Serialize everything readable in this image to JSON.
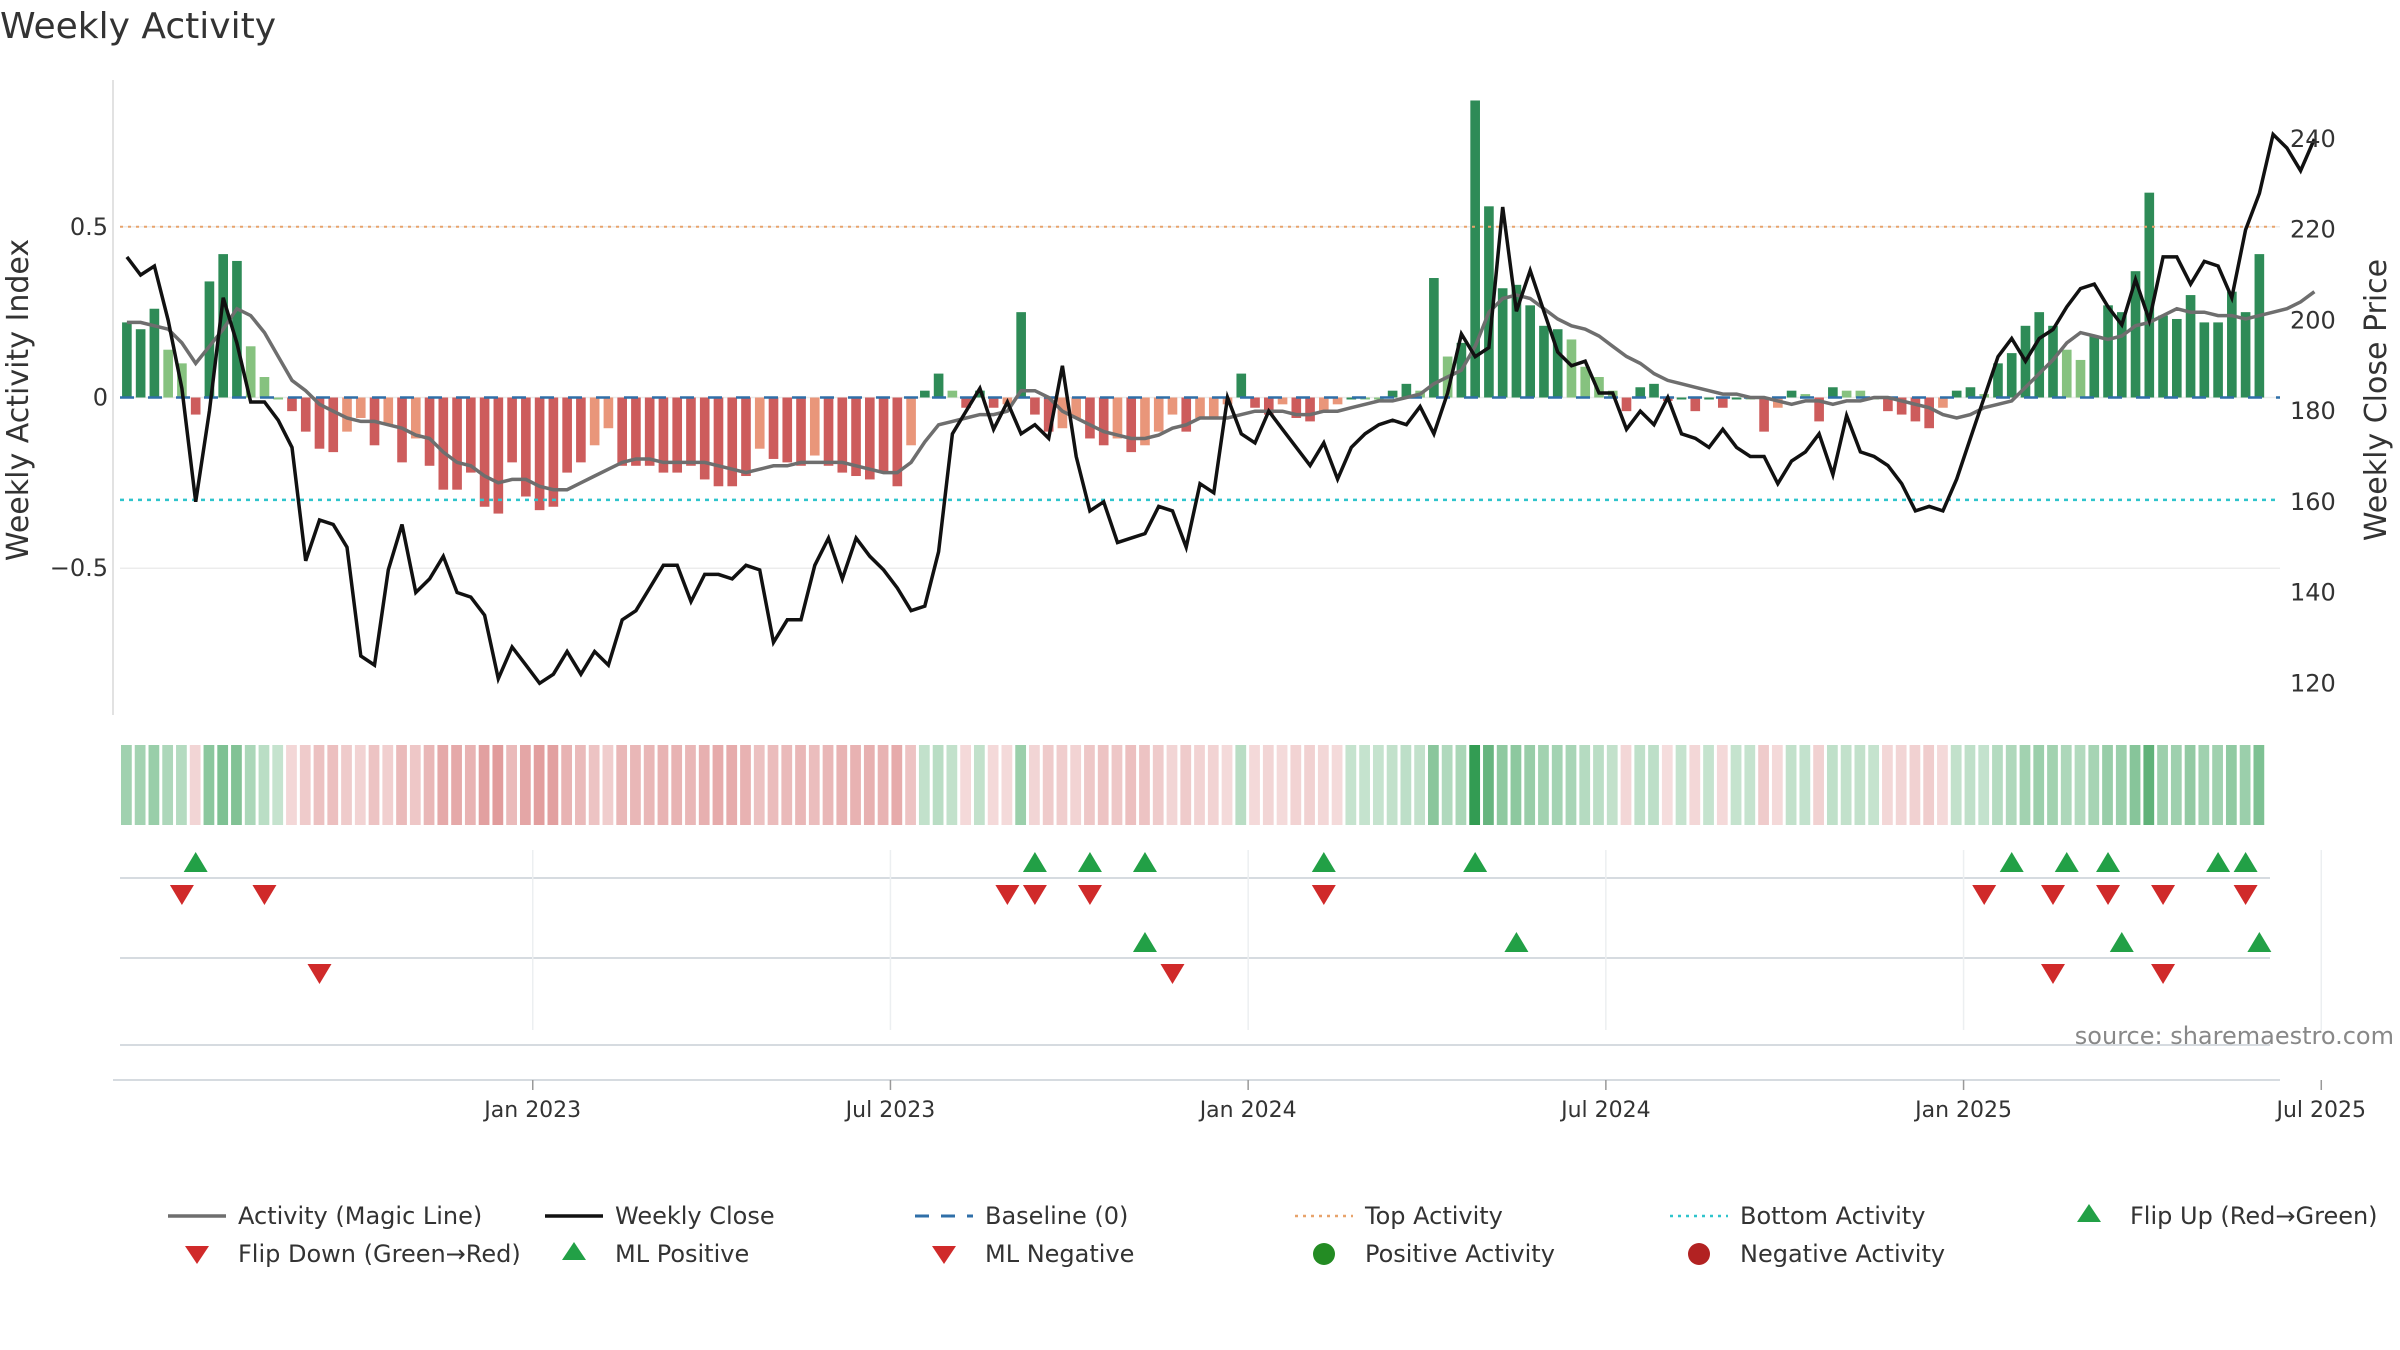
{
  "chart_data": {
    "type": "bar",
    "title": "Weekly Activity",
    "ylabel_left": "Weekly Activity Index",
    "ylabel_right": "Weekly Close Price",
    "source": "source: sharemaestro.com",
    "ylim_left": [
      -0.93,
      0.93
    ],
    "ylim_right": [
      113,
      253
    ],
    "yticks_left": [
      {
        "v": 0.5,
        "label": "0.5"
      },
      {
        "v": 0,
        "label": "0"
      },
      {
        "v": -0.5,
        "label": "−0.5"
      }
    ],
    "yticks_right": [
      120,
      140,
      160,
      180,
      200,
      220,
      240
    ],
    "top_activity": 0.5,
    "bottom_activity": -0.3,
    "x_ticks": [
      {
        "week": 30,
        "label": "Jan 2023"
      },
      {
        "week": 56,
        "label": "Jul 2023"
      },
      {
        "week": 82,
        "label": "Jan 2024"
      },
      {
        "week": 108,
        "label": "Jul 2024"
      },
      {
        "week": 134,
        "label": "Jan 2025"
      },
      {
        "week": 160,
        "label": "Jul 2025"
      }
    ],
    "n_weeks": 157,
    "activity": [
      0.22,
      0.2,
      0.26,
      0.14,
      0.1,
      -0.05,
      0.34,
      0.42,
      0.4,
      0.15,
      0.06,
      0.0,
      -0.04,
      -0.1,
      -0.15,
      -0.16,
      -0.1,
      -0.06,
      -0.14,
      -0.08,
      -0.19,
      -0.12,
      -0.2,
      -0.27,
      -0.27,
      -0.22,
      -0.32,
      -0.34,
      -0.19,
      -0.29,
      -0.33,
      -0.32,
      -0.22,
      -0.19,
      -0.14,
      -0.09,
      -0.2,
      -0.2,
      -0.2,
      -0.22,
      -0.22,
      -0.2,
      -0.24,
      -0.26,
      -0.26,
      -0.23,
      -0.15,
      -0.18,
      -0.19,
      -0.2,
      -0.17,
      -0.2,
      -0.22,
      -0.23,
      -0.24,
      -0.22,
      -0.26,
      -0.14,
      0.02,
      0.07,
      0.02,
      -0.03,
      0.02,
      -0.03,
      -0.02,
      0.25,
      -0.05,
      -0.1,
      -0.09,
      -0.06,
      -0.12,
      -0.14,
      -0.12,
      -0.16,
      -0.14,
      -0.1,
      -0.05,
      -0.1,
      -0.06,
      -0.06,
      -0.02,
      0.07,
      -0.03,
      -0.05,
      -0.02,
      -0.06,
      -0.07,
      -0.04,
      -0.02,
      0.0,
      0.0,
      0.0,
      0.02,
      0.04,
      0.02,
      0.35,
      0.12,
      0.16,
      0.87,
      0.56,
      0.32,
      0.33,
      0.27,
      0.21,
      0.2,
      0.17,
      0.09,
      0.06,
      0.02,
      -0.04,
      0.03,
      0.04,
      -0.01,
      0.0,
      -0.04,
      0.0,
      -0.03,
      0.0,
      0.0,
      -0.1,
      -0.03,
      0.02,
      0.01,
      -0.07,
      0.03,
      0.02,
      0.02,
      0.0,
      -0.04,
      -0.05,
      -0.07,
      -0.09,
      -0.03,
      0.02,
      0.03,
      0.01,
      0.1,
      0.13,
      0.21,
      0.25,
      0.21,
      0.14,
      0.11,
      0.18,
      0.27,
      0.25,
      0.37,
      0.6,
      0.24,
      0.23,
      0.3,
      0.22,
      0.22,
      0.31,
      0.25,
      0.42
    ],
    "magic_line": [
      0.22,
      0.22,
      0.21,
      0.2,
      0.16,
      0.1,
      0.15,
      0.2,
      0.26,
      0.24,
      0.19,
      0.12,
      0.05,
      0.02,
      -0.02,
      -0.04,
      -0.06,
      -0.07,
      -0.07,
      -0.08,
      -0.09,
      -0.11,
      -0.12,
      -0.16,
      -0.19,
      -0.2,
      -0.23,
      -0.25,
      -0.24,
      -0.24,
      -0.26,
      -0.27,
      -0.27,
      -0.25,
      -0.23,
      -0.21,
      -0.19,
      -0.18,
      -0.18,
      -0.19,
      -0.19,
      -0.19,
      -0.19,
      -0.2,
      -0.21,
      -0.22,
      -0.21,
      -0.2,
      -0.2,
      -0.19,
      -0.19,
      -0.19,
      -0.19,
      -0.2,
      -0.21,
      -0.22,
      -0.22,
      -0.19,
      -0.13,
      -0.08,
      -0.07,
      -0.06,
      -0.05,
      -0.05,
      -0.04,
      0.02,
      0.02,
      0.0,
      -0.04,
      -0.06,
      -0.08,
      -0.1,
      -0.11,
      -0.12,
      -0.12,
      -0.11,
      -0.09,
      -0.08,
      -0.06,
      -0.06,
      -0.06,
      -0.05,
      -0.04,
      -0.04,
      -0.04,
      -0.05,
      -0.05,
      -0.04,
      -0.04,
      -0.03,
      -0.02,
      -0.01,
      -0.01,
      0.0,
      0.01,
      0.04,
      0.06,
      0.08,
      0.15,
      0.25,
      0.29,
      0.3,
      0.29,
      0.26,
      0.23,
      0.21,
      0.2,
      0.18,
      0.15,
      0.12,
      0.1,
      0.07,
      0.05,
      0.04,
      0.03,
      0.02,
      0.01,
      0.01,
      0.0,
      0.0,
      -0.01,
      -0.02,
      -0.01,
      -0.01,
      -0.02,
      -0.01,
      -0.01,
      0.0,
      0.0,
      -0.01,
      -0.02,
      -0.03,
      -0.05,
      -0.06,
      -0.05,
      -0.03,
      -0.02,
      -0.01,
      0.03,
      0.07,
      0.11,
      0.16,
      0.19,
      0.18,
      0.17,
      0.18,
      0.21,
      0.22,
      0.24,
      0.26,
      0.25,
      0.25,
      0.24,
      0.24,
      0.23,
      0.24,
      0.25,
      0.26,
      0.28,
      0.31
    ],
    "weekly_close": [
      214,
      210,
      212,
      200,
      185,
      160,
      180,
      205,
      195,
      182,
      182,
      178,
      172,
      147,
      156,
      155,
      150,
      126,
      124,
      145,
      155,
      140,
      143,
      148,
      140,
      139,
      135,
      121,
      128,
      124,
      120,
      122,
      127,
      122,
      127,
      124,
      134,
      136,
      141,
      146,
      146,
      138,
      144,
      144,
      143,
      146,
      145,
      129,
      134,
      134,
      146,
      152,
      143,
      152,
      148,
      145,
      141,
      136,
      137,
      149,
      175,
      180,
      185,
      176,
      182,
      175,
      177,
      174,
      190,
      170,
      158,
      160,
      151,
      152,
      153,
      159,
      158,
      150,
      164,
      162,
      183,
      175,
      173,
      180,
      176,
      172,
      168,
      173,
      165,
      172,
      175,
      177,
      178,
      177,
      181,
      175,
      184,
      197,
      192,
      194,
      225,
      202,
      211,
      202,
      193,
      190,
      191,
      184,
      184,
      176,
      180,
      177,
      183,
      175,
      174,
      172,
      176,
      172,
      170,
      170,
      164,
      169,
      171,
      175,
      166,
      179,
      171,
      170,
      168,
      164,
      158,
      159,
      158,
      165,
      174,
      183,
      192,
      196,
      191,
      196,
      198,
      203,
      207,
      208,
      203,
      199,
      209,
      200,
      214,
      214,
      208,
      213,
      212,
      205,
      220,
      228,
      241,
      238,
      233,
      240
    ],
    "activity_strip_note": "heatmap strip: green shades for positive weeks, red shades for negative weeks",
    "markers_flip_up": [
      5,
      66,
      70,
      74,
      87,
      98,
      137,
      141,
      144,
      152,
      154
    ],
    "markers_flip_down": [
      4,
      10,
      64,
      66,
      70,
      87,
      135,
      140,
      144,
      148,
      154
    ],
    "markers_ml_positive": [
      74,
      101,
      145,
      155
    ],
    "markers_ml_negative": [
      14,
      76,
      140,
      148
    ],
    "legend": [
      {
        "label": "Activity (Magic Line)",
        "kind": "line",
        "color": "#6e6e6e"
      },
      {
        "label": "Weekly Close",
        "kind": "line",
        "color": "#111111"
      },
      {
        "label": "Baseline (0)",
        "kind": "dash",
        "color": "#2f6fa8"
      },
      {
        "label": "Top Activity",
        "kind": "dot",
        "color": "#e8a36b"
      },
      {
        "label": "Bottom Activity",
        "kind": "dot",
        "color": "#2ec4cc"
      },
      {
        "label": "Flip Up (Red→Green)",
        "kind": "tri-up",
        "color": "#22a046"
      },
      {
        "label": "Flip Down (Green→Red)",
        "kind": "tri-down",
        "color": "#d02a2a"
      },
      {
        "label": "ML Positive",
        "kind": "tri-up",
        "color": "#22a046"
      },
      {
        "label": "ML Negative",
        "kind": "tri-down",
        "color": "#d02a2a"
      },
      {
        "label": "Positive Activity",
        "kind": "circle",
        "color": "#238b23"
      },
      {
        "label": "Negative Activity",
        "kind": "circle",
        "color": "#b22222"
      }
    ],
    "colors": {
      "pos_strong": "#2e8b57",
      "pos_weak": "#86c27f",
      "neg_strong": "#cd5c5c",
      "neg_weak": "#e9967a"
    }
  }
}
